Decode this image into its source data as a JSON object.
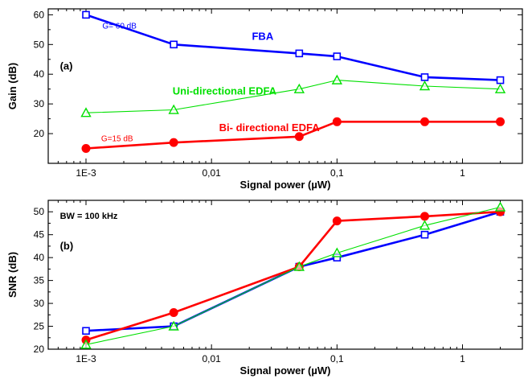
{
  "chart_data": [
    {
      "type": "line",
      "panel_label": "(a)",
      "xlabel": "Signal power (µW)",
      "ylabel": "Gain (dB)",
      "xscale": "log",
      "xlim": [
        0.0005,
        3
      ],
      "ylim": [
        10,
        62
      ],
      "x_ticks": [
        0.001,
        0.01,
        0.1,
        1
      ],
      "x_tick_labels": [
        "1E-3",
        "0,01",
        "0,1",
        "1"
      ],
      "y_ticks": [
        20,
        30,
        40,
        50,
        60
      ],
      "y_tick_labels": [
        "20",
        "30",
        "40",
        "50",
        "60"
      ],
      "x": [
        0.001,
        0.005,
        0.05,
        0.1,
        0.5,
        2
      ],
      "series": [
        {
          "name": "FBA",
          "values": [
            60,
            50,
            47,
            46,
            39,
            38
          ],
          "color": "#0000ff",
          "marker": "open-square",
          "line": "thick"
        },
        {
          "name": "Uni-directional EDFA",
          "values": [
            27,
            28,
            35,
            38,
            36,
            35
          ],
          "color": "#00e000",
          "marker": "open-triangle",
          "line": "thin"
        },
        {
          "name": "Bi- directional EDFA",
          "values": [
            15,
            17,
            19,
            24,
            24,
            24
          ],
          "color": "#ff0000",
          "marker": "filled-circle",
          "line": "thick"
        }
      ],
      "annotations": [
        {
          "text": "G= 60 dB",
          "color": "#0000ff",
          "x": 0.00135,
          "y": 55.3,
          "size": 10,
          "bold": false
        },
        {
          "text": "FBA",
          "color": "#0000ff",
          "x": 0.021,
          "y": 51.6,
          "size": 13,
          "bold": true
        },
        {
          "text": "Uni-directional EDFA",
          "color": "#00e000",
          "x": 0.0049,
          "y": 33.1,
          "size": 13,
          "bold": true
        },
        {
          "text": "Bi- directional EDFA",
          "color": "#ff0000",
          "x": 0.0115,
          "y": 20.9,
          "size": 13,
          "bold": true
        },
        {
          "text": "G=15 dB",
          "color": "#ff0000",
          "x": 0.00132,
          "y": 17.5,
          "size": 10,
          "bold": false
        },
        {
          "text": "(a)",
          "color": "#000000",
          "x": 0.00062,
          "y": 41.5,
          "size": 13,
          "bold": true
        }
      ]
    },
    {
      "type": "line",
      "panel_label": "(b)",
      "xlabel": "Signal power (µW)",
      "ylabel": "SNR (dB)",
      "xscale": "log",
      "xlim": [
        0.0005,
        3
      ],
      "ylim": [
        20,
        52.5
      ],
      "x_ticks": [
        0.001,
        0.01,
        0.1,
        1
      ],
      "x_tick_labels": [
        "1E-3",
        "0,01",
        "0,1",
        "1"
      ],
      "y_ticks": [
        20,
        25,
        30,
        35,
        40,
        45,
        50
      ],
      "y_tick_labels": [
        "20",
        "25",
        "30",
        "35",
        "40",
        "45",
        "50"
      ],
      "x": [
        0.001,
        0.005,
        0.05,
        0.1,
        0.5,
        2
      ],
      "series": [
        {
          "name": "FBA",
          "values": [
            24,
            25,
            38,
            40,
            45,
            50
          ],
          "color": "#0000ff",
          "marker": "open-square",
          "line": "thick"
        },
        {
          "name": "Bi- directional EDFA",
          "values": [
            22,
            28,
            38,
            48,
            49,
            50
          ],
          "color": "#ff0000",
          "marker": "filled-circle",
          "line": "thick"
        },
        {
          "name": "Uni-directional EDFA",
          "values": [
            21,
            25,
            38,
            41,
            47,
            51
          ],
          "color": "#00e000",
          "marker": "open-triangle",
          "line": "thin"
        }
      ],
      "annotations": [
        {
          "text": "BW = 100 kHz",
          "color": "#000000",
          "x": 0.00062,
          "y": 48.5,
          "size": 11,
          "bold": true
        },
        {
          "text": "(b)",
          "color": "#000000",
          "x": 0.00062,
          "y": 41.8,
          "size": 13,
          "bold": true
        }
      ]
    }
  ]
}
